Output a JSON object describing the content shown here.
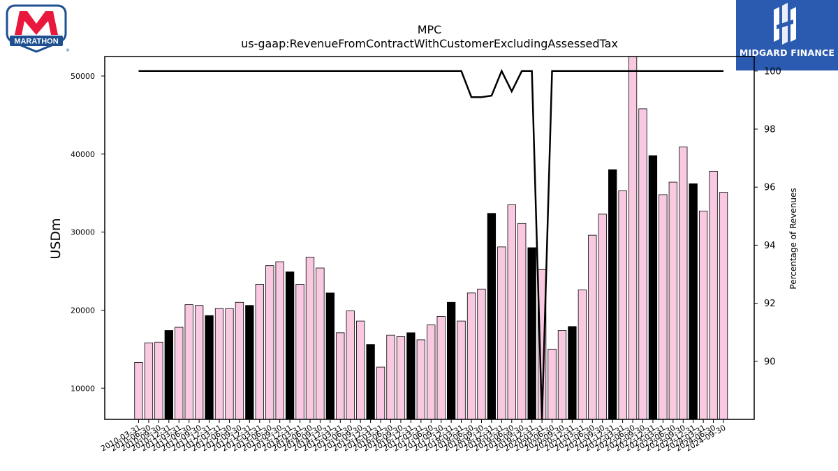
{
  "logos": {
    "left_text": "MARATHON",
    "right_text": "MIDGARD FINANCE"
  },
  "colors": {
    "bar_fill": "#f9c9e2",
    "bar_highlight": "#000000",
    "line": "#000000",
    "brand_red": "#e8193c",
    "brand_blue": "#1d4f91",
    "midgard_blue": "#2b5bb0"
  },
  "chart_data": {
    "type": "bar",
    "title": "MPC",
    "subtitle": "us-gaap:RevenueFromContractWithCustomerExcludingAssessedTax",
    "ylabel": "USDm",
    "y2label": "Percentage of Revenues",
    "ylim": [
      6000,
      52500
    ],
    "y2lim": [
      88,
      100.5
    ],
    "yticks": [
      10000,
      20000,
      30000,
      40000,
      50000
    ],
    "y2ticks": [
      90,
      92,
      94,
      96,
      98,
      100
    ],
    "categories": [
      "2010-03-31",
      "2010-06-30",
      "2010-09-30",
      "2010-12-31",
      "2011-03-31",
      "2011-06-30",
      "2011-09-30",
      "2011-12-31",
      "2012-03-31",
      "2012-06-30",
      "2012-09-30",
      "2012-12-31",
      "2013-03-31",
      "2013-06-30",
      "2013-09-30",
      "2013-12-31",
      "2014-03-31",
      "2014-06-30",
      "2014-09-30",
      "2014-12-31",
      "2015-03-31",
      "2015-06-30",
      "2015-09-30",
      "2015-12-31",
      "2016-03-31",
      "2016-06-30",
      "2016-09-30",
      "2016-12-31",
      "2017-03-31",
      "2017-06-30",
      "2017-09-30",
      "2017-12-31",
      "2018-03-31",
      "2018-06-30",
      "2018-09-30",
      "2018-12-31",
      "2019-03-31",
      "2019-06-30",
      "2019-09-30",
      "2019-12-31",
      "2020-03-31",
      "2020-06-30",
      "2020-09-30",
      "2020-12-31",
      "2021-03-31",
      "2021-06-30",
      "2021-09-30",
      "2021-12-31",
      "2022-03-31",
      "2022-06-30",
      "2022-09-30",
      "2022-12-31",
      "2023-03-31",
      "2023-06-30",
      "2023-09-30",
      "2023-12-31",
      "2024-03-31",
      "2024-06-30",
      "2024-09-30"
    ],
    "series": [
      {
        "kind": "bar",
        "values": [
          13300,
          15800,
          15900,
          17400,
          17800,
          20700,
          20600,
          19300,
          20200,
          20200,
          21000,
          20600,
          23300,
          25700,
          26200,
          24900,
          23300,
          26800,
          25400,
          22200,
          17100,
          19900,
          18600,
          15600,
          12700,
          16800,
          16600,
          17100,
          16200,
          18100,
          19200,
          21000,
          18600,
          22200,
          22700,
          32400,
          28100,
          33500,
          31100,
          28000,
          25200,
          15000,
          17400,
          17900,
          22600,
          29600,
          32300,
          38000,
          35300,
          54300,
          45800,
          39800,
          34800,
          36400,
          40900,
          36200,
          32700,
          37800,
          35100
        ],
        "highlight_every": 4,
        "highlight_start": 3
      },
      {
        "kind": "line",
        "axis": "right",
        "values": [
          100,
          100,
          100,
          100,
          100,
          100,
          100,
          100,
          100,
          100,
          100,
          100,
          100,
          100,
          100,
          100,
          100,
          100,
          100,
          100,
          100,
          100,
          100,
          100,
          100,
          100,
          100,
          100,
          100,
          100,
          100,
          100,
          100,
          99.1,
          99.1,
          99.15,
          100,
          99.3,
          100,
          100,
          88,
          100,
          100,
          100,
          100,
          100,
          100,
          100,
          100,
          100,
          100,
          100,
          100,
          100,
          100,
          100,
          100,
          100,
          100
        ]
      }
    ]
  }
}
